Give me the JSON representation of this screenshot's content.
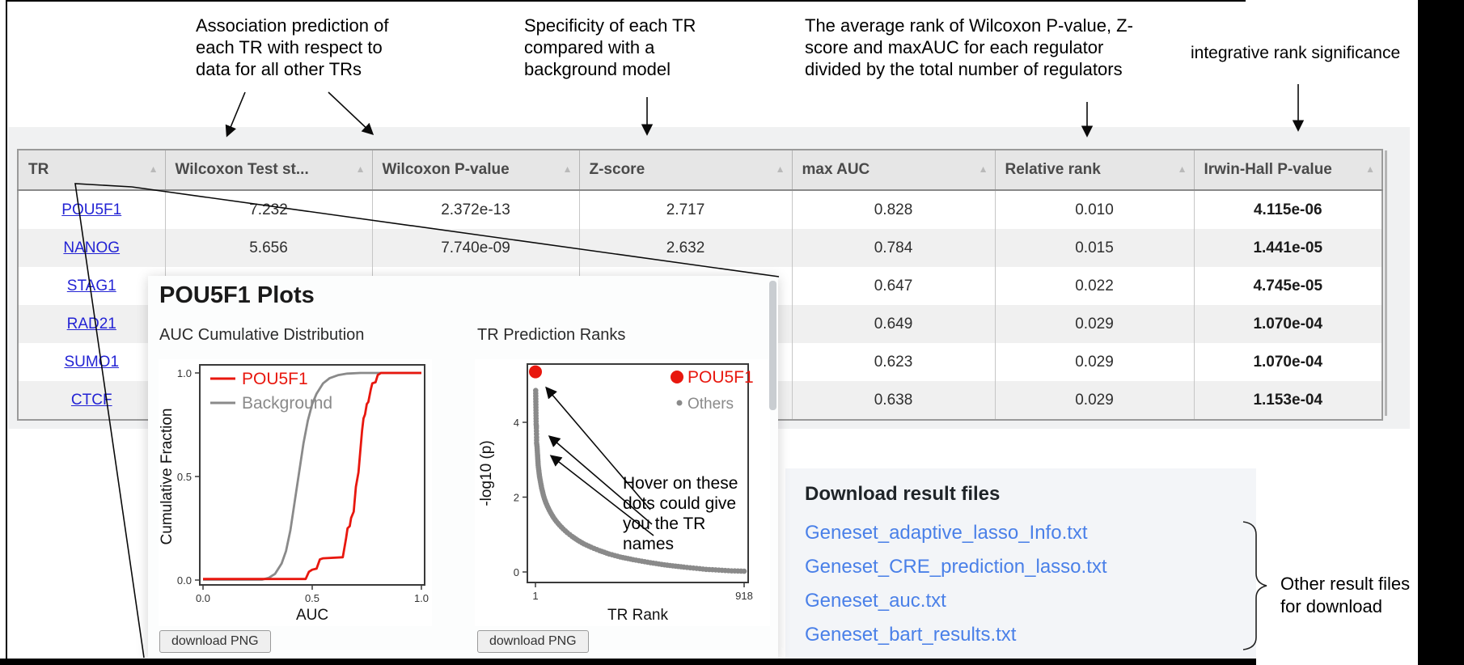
{
  "annotations": {
    "assoc": {
      "lines": [
        "Association prediction of",
        "each TR with respect to",
        "data for all other TRs"
      ]
    },
    "specificity": {
      "lines": [
        "Specificity of each TR",
        "compared with a",
        "background model"
      ]
    },
    "avg_rank": {
      "lines": [
        "The average rank of Wilcoxon P-value, Z-",
        "score and maxAUC for each regulator",
        "divided by the total number of regulators"
      ]
    },
    "integrative": {
      "text": "integrative rank significance"
    },
    "hover": {
      "lines": [
        "Hover on these",
        "dots could give",
        "you the TR",
        "names"
      ]
    },
    "other_files": {
      "lines": [
        "Other result files",
        "for download"
      ]
    }
  },
  "table": {
    "sort_icon": "▲",
    "columns": [
      {
        "label": "TR"
      },
      {
        "label": "Wilcoxon Test st..."
      },
      {
        "label": "Wilcoxon P-value"
      },
      {
        "label": "Z-score"
      },
      {
        "label": "max AUC"
      },
      {
        "label": "Relative rank"
      },
      {
        "label": "Irwin-Hall P-value"
      }
    ],
    "rows": [
      {
        "tr": "POU5F1",
        "cells": [
          "7.232",
          "2.372e-13",
          "2.717",
          "0.828",
          "0.010",
          "4.115e-06"
        ]
      },
      {
        "tr": "NANOG",
        "cells": [
          "5.656",
          "7.740e-09",
          "2.632",
          "0.784",
          "0.015",
          "1.441e-05"
        ]
      },
      {
        "tr": "STAG1",
        "cells": [
          "",
          "",
          "",
          "0.647",
          "0.022",
          "4.745e-05"
        ]
      },
      {
        "tr": "RAD21",
        "cells": [
          "",
          "",
          "",
          "0.649",
          "0.029",
          "1.070e-04"
        ]
      },
      {
        "tr": "SUMO1",
        "cells": [
          "",
          "",
          "",
          "0.623",
          "0.029",
          "1.070e-04"
        ]
      },
      {
        "tr": "CTCF",
        "cells": [
          "",
          "",
          "",
          "0.638",
          "0.029",
          "1.153e-04"
        ]
      }
    ]
  },
  "popup": {
    "title": "POU5F1 Plots",
    "chart1_title": "AUC Cumulative Distribution",
    "chart2_title": "TR Prediction Ranks",
    "download_btn": "download PNG"
  },
  "downloads": {
    "heading": "Download result files",
    "files": [
      "Geneset_adaptive_lasso_Info.txt",
      "Geneset_CRE_prediction_lasso.txt",
      "Geneset_auc.txt",
      "Geneset_bart_results.txt"
    ]
  },
  "colors": {
    "accent_red": "#e8170e",
    "link_blue": "#2323d4",
    "download_blue": "#4a80e8",
    "gray": "#8a8a8a"
  },
  "chart_data": [
    {
      "type": "line",
      "title": "AUC Cumulative Distribution",
      "xlabel": "AUC",
      "ylabel": "Cumulative Fraction",
      "xlim": [
        0,
        1
      ],
      "ylim": [
        0,
        1
      ],
      "xticks": [
        0.0,
        0.5,
        1.0
      ],
      "yticks": [
        0.0,
        0.5,
        1.0
      ],
      "grid": false,
      "legend_position": "top-left",
      "series": [
        {
          "name": "POU5F1",
          "color": "#e8170e",
          "points": [
            [
              0,
              0.005
            ],
            [
              0.47,
              0.005
            ],
            [
              0.485,
              0.04
            ],
            [
              0.5,
              0.05
            ],
            [
              0.52,
              0.055
            ],
            [
              0.535,
              0.1
            ],
            [
              0.55,
              0.105
            ],
            [
              0.64,
              0.11
            ],
            [
              0.655,
              0.2
            ],
            [
              0.662,
              0.25
            ],
            [
              0.672,
              0.26
            ],
            [
              0.678,
              0.3
            ],
            [
              0.69,
              0.33
            ],
            [
              0.7,
              0.45
            ],
            [
              0.712,
              0.52
            ],
            [
              0.72,
              0.62
            ],
            [
              0.728,
              0.72
            ],
            [
              0.735,
              0.78
            ],
            [
              0.742,
              0.8
            ],
            [
              0.75,
              0.85
            ],
            [
              0.757,
              0.86
            ],
            [
              0.768,
              0.92
            ],
            [
              0.775,
              0.95
            ],
            [
              0.79,
              0.955
            ],
            [
              0.8,
              0.99
            ],
            [
              0.815,
              1.0
            ],
            [
              1.0,
              1.0
            ]
          ]
        },
        {
          "name": "Background",
          "color": "#8a8a8a",
          "points": [
            [
              0,
              0.002
            ],
            [
              0.27,
              0.002
            ],
            [
              0.3,
              0.01
            ],
            [
              0.33,
              0.03
            ],
            [
              0.36,
              0.08
            ],
            [
              0.38,
              0.14
            ],
            [
              0.4,
              0.24
            ],
            [
              0.42,
              0.38
            ],
            [
              0.44,
              0.52
            ],
            [
              0.46,
              0.66
            ],
            [
              0.48,
              0.77
            ],
            [
              0.5,
              0.85
            ],
            [
              0.52,
              0.9
            ],
            [
              0.55,
              0.95
            ],
            [
              0.58,
              0.975
            ],
            [
              0.62,
              0.99
            ],
            [
              0.66,
              0.997
            ],
            [
              0.72,
              1.0
            ],
            [
              1.0,
              1.0
            ]
          ]
        }
      ]
    },
    {
      "type": "scatter",
      "title": "TR Prediction Ranks",
      "xlabel": "TR Rank",
      "ylabel": "-log10 (p)",
      "xlim": [
        1,
        918
      ],
      "ylim": [
        0,
        5.6
      ],
      "xticks": [
        1,
        918
      ],
      "yticks": [
        0,
        2,
        4
      ],
      "grid": false,
      "legend_position": "top-right",
      "highlight": {
        "name": "POU5F1",
        "color": "#e8170e",
        "point": [
          1,
          5.35
        ]
      },
      "others_name": "Others",
      "others_color": "#8a8a8a",
      "points": [
        [
          2,
          4.85
        ],
        [
          3,
          4.4
        ],
        [
          4,
          3.95
        ],
        [
          5,
          3.9
        ],
        [
          5,
          3.85
        ],
        [
          6,
          3.6
        ],
        [
          6,
          3.45
        ],
        [
          7,
          3.4
        ],
        [
          8,
          3.35
        ],
        [
          9,
          3.25
        ],
        [
          10,
          3.15
        ],
        [
          11,
          3.05
        ],
        [
          12,
          2.95
        ],
        [
          13,
          2.85
        ],
        [
          15,
          2.75
        ],
        [
          17,
          2.65
        ],
        [
          19,
          2.55
        ],
        [
          22,
          2.45
        ],
        [
          25,
          2.35
        ],
        [
          28,
          2.25
        ],
        [
          32,
          2.15
        ],
        [
          36,
          2.05
        ],
        [
          41,
          1.95
        ],
        [
          47,
          1.85
        ],
        [
          54,
          1.75
        ],
        [
          62,
          1.65
        ],
        [
          71,
          1.55
        ],
        [
          81,
          1.45
        ],
        [
          93,
          1.35
        ],
        [
          107,
          1.25
        ],
        [
          123,
          1.15
        ],
        [
          141,
          1.05
        ],
        [
          162,
          0.95
        ],
        [
          186,
          0.85
        ],
        [
          214,
          0.75
        ],
        [
          246,
          0.66
        ],
        [
          283,
          0.57
        ],
        [
          325,
          0.48
        ],
        [
          374,
          0.4
        ],
        [
          430,
          0.33
        ],
        [
          494,
          0.26
        ],
        [
          568,
          0.19
        ],
        [
          653,
          0.13
        ],
        [
          751,
          0.07
        ],
        [
          863,
          0.03
        ],
        [
          918,
          0.02
        ]
      ]
    }
  ]
}
